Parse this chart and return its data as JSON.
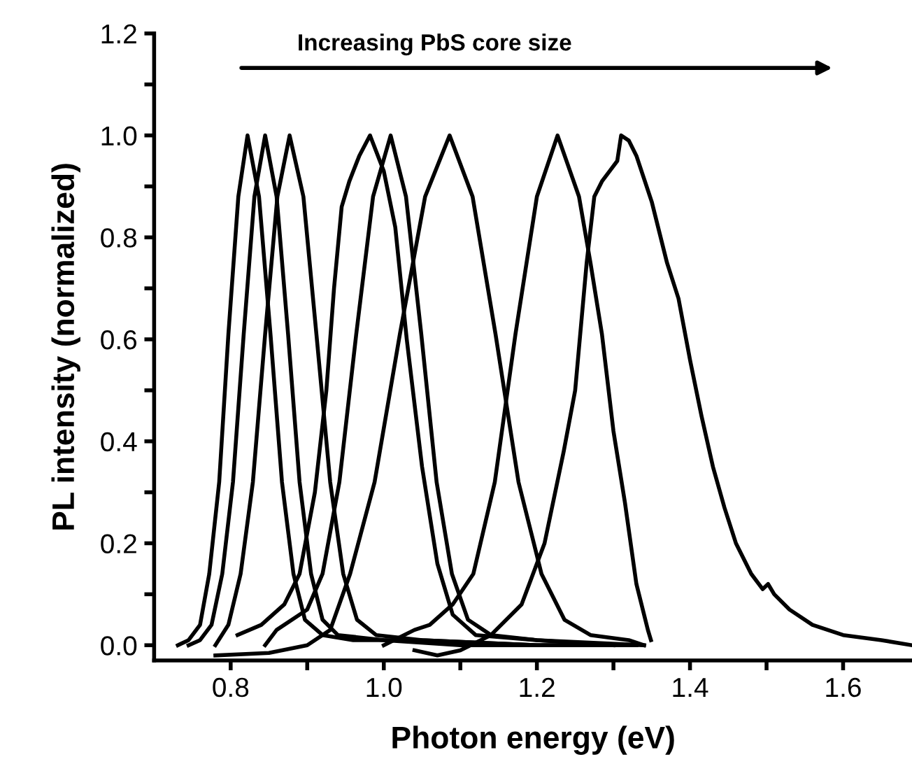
{
  "chart_data": {
    "type": "line",
    "xlabel": "Photon energy (eV)",
    "ylabel": "PL intensity (normalized)",
    "annotations": [
      "Increasing PbS core size"
    ],
    "xlim": [
      0.7,
      1.69
    ],
    "ylim": [
      -0.03,
      1.2
    ],
    "xticks": [
      {
        "value": 0.8,
        "label": "0.8"
      },
      {
        "value": 0.9,
        "label": null
      },
      {
        "value": 1.0,
        "label": "1.0"
      },
      {
        "value": 1.1,
        "label": null
      },
      {
        "value": 1.2,
        "label": "1.2"
      },
      {
        "value": 1.3,
        "label": null
      },
      {
        "value": 1.4,
        "label": "1.4"
      },
      {
        "value": 1.5,
        "label": null
      },
      {
        "value": 1.6,
        "label": "1.6"
      }
    ],
    "yticks": [
      {
        "value": 0,
        "label": "0.0"
      },
      {
        "value": 0.1,
        "label": null
      },
      {
        "value": 0.2,
        "label": "0.2"
      },
      {
        "value": 0.3,
        "label": null
      },
      {
        "value": 0.4,
        "label": "0.4"
      },
      {
        "value": 0.5,
        "label": null
      },
      {
        "value": 0.6,
        "label": "0.6"
      },
      {
        "value": 0.7,
        "label": null
      },
      {
        "value": 0.8,
        "label": "0.8"
      },
      {
        "value": 0.9,
        "label": null
      },
      {
        "value": 1,
        "label": "1.0"
      },
      {
        "value": 1.1,
        "label": null
      },
      {
        "value": 1.2,
        "label": "1.2"
      }
    ],
    "grid": false,
    "marker": "none",
    "line_style": "solid",
    "series": [
      {
        "color": "#000000",
        "x": [
          0.731,
          0.745,
          0.76,
          0.772,
          0.785,
          0.797,
          0.81,
          0.822,
          0.837,
          0.852,
          0.867,
          0.882,
          0.897,
          0.92,
          0.96,
          1.05,
          1.2,
          1.3
        ],
        "values": [
          0.0,
          0.01,
          0.04,
          0.14,
          0.32,
          0.61,
          0.88,
          1.0,
          0.88,
          0.61,
          0.32,
          0.14,
          0.05,
          0.02,
          0.01,
          0.01,
          0.0,
          0.0
        ]
      },
      {
        "color": "#000000",
        "x": [
          0.745,
          0.76,
          0.775,
          0.789,
          0.803,
          0.817,
          0.831,
          0.845,
          0.86,
          0.875,
          0.89,
          0.905,
          0.92,
          0.94,
          1.0,
          1.1,
          1.25
        ],
        "values": [
          0.0,
          0.01,
          0.04,
          0.14,
          0.32,
          0.61,
          0.88,
          1.0,
          0.88,
          0.61,
          0.32,
          0.14,
          0.05,
          0.02,
          0.01,
          0.0,
          0.0
        ]
      },
      {
        "color": "#000000",
        "x": [
          0.78,
          0.797,
          0.813,
          0.829,
          0.845,
          0.861,
          0.877,
          0.895,
          0.912,
          0.93,
          0.947,
          0.965,
          0.99,
          1.05,
          1.2,
          1.33
        ],
        "values": [
          0.0,
          0.04,
          0.14,
          0.32,
          0.61,
          0.88,
          1.0,
          0.88,
          0.61,
          0.32,
          0.14,
          0.05,
          0.02,
          0.01,
          0.0,
          0.0
        ]
      },
      {
        "color": "#000000",
        "x": [
          0.809,
          0.84,
          0.87,
          0.89,
          0.91,
          0.925,
          0.935,
          0.945,
          0.955,
          0.968,
          0.982,
          1.0,
          1.015,
          1.03,
          1.05,
          1.07,
          1.09,
          1.12,
          1.2,
          1.3
        ],
        "values": [
          0.02,
          0.04,
          0.08,
          0.14,
          0.3,
          0.5,
          0.7,
          0.86,
          0.91,
          0.96,
          1.0,
          0.93,
          0.82,
          0.6,
          0.35,
          0.16,
          0.06,
          0.02,
          0.01,
          0.0
        ]
      },
      {
        "color": "#000000",
        "x": [
          0.845,
          0.86,
          0.9,
          0.92,
          0.942,
          0.964,
          0.986,
          1.009,
          1.029,
          1.049,
          1.069,
          1.089,
          1.11,
          1.14,
          1.2,
          1.34
        ],
        "values": [
          0.0,
          0.03,
          0.07,
          0.14,
          0.32,
          0.61,
          0.88,
          1.0,
          0.88,
          0.61,
          0.32,
          0.14,
          0.05,
          0.02,
          0.01,
          0.0
        ]
      },
      {
        "color": "#000000",
        "x": [
          0.78,
          0.85,
          0.9,
          0.93,
          0.956,
          0.988,
          1.021,
          1.054,
          1.086,
          1.116,
          1.146,
          1.176,
          1.206,
          1.236,
          1.27,
          1.32,
          1.34
        ],
        "values": [
          -0.02,
          -0.015,
          0.0,
          0.03,
          0.14,
          0.32,
          0.61,
          0.88,
          1.0,
          0.88,
          0.61,
          0.32,
          0.14,
          0.05,
          0.02,
          0.01,
          0.0
        ]
      },
      {
        "color": "#000000",
        "x": [
          1.0,
          1.04,
          1.06,
          1.09,
          1.117,
          1.145,
          1.172,
          1.2,
          1.227,
          1.255,
          1.27,
          1.285,
          1.3,
          1.315,
          1.33,
          1.345,
          1.349
        ],
        "values": [
          0.0,
          0.03,
          0.04,
          0.08,
          0.14,
          0.32,
          0.61,
          0.88,
          1.0,
          0.88,
          0.75,
          0.61,
          0.42,
          0.28,
          0.12,
          0.03,
          0.01
        ]
      },
      {
        "color": "#000000",
        "x": [
          1.04,
          1.07,
          1.1,
          1.14,
          1.18,
          1.21,
          1.235,
          1.25,
          1.265,
          1.275,
          1.285,
          1.295,
          1.305,
          1.31,
          1.32,
          1.33,
          1.35,
          1.37,
          1.385,
          1.4,
          1.415,
          1.43,
          1.445,
          1.46,
          1.48,
          1.495,
          1.502,
          1.51,
          1.53,
          1.56,
          1.6,
          1.65,
          1.69
        ],
        "values": [
          -0.01,
          -0.02,
          -0.01,
          0.02,
          0.08,
          0.2,
          0.38,
          0.5,
          0.75,
          0.88,
          0.91,
          0.93,
          0.95,
          1.0,
          0.99,
          0.96,
          0.87,
          0.75,
          0.68,
          0.56,
          0.45,
          0.35,
          0.27,
          0.2,
          0.14,
          0.11,
          0.12,
          0.1,
          0.07,
          0.04,
          0.02,
          0.01,
          0.0
        ]
      }
    ]
  }
}
